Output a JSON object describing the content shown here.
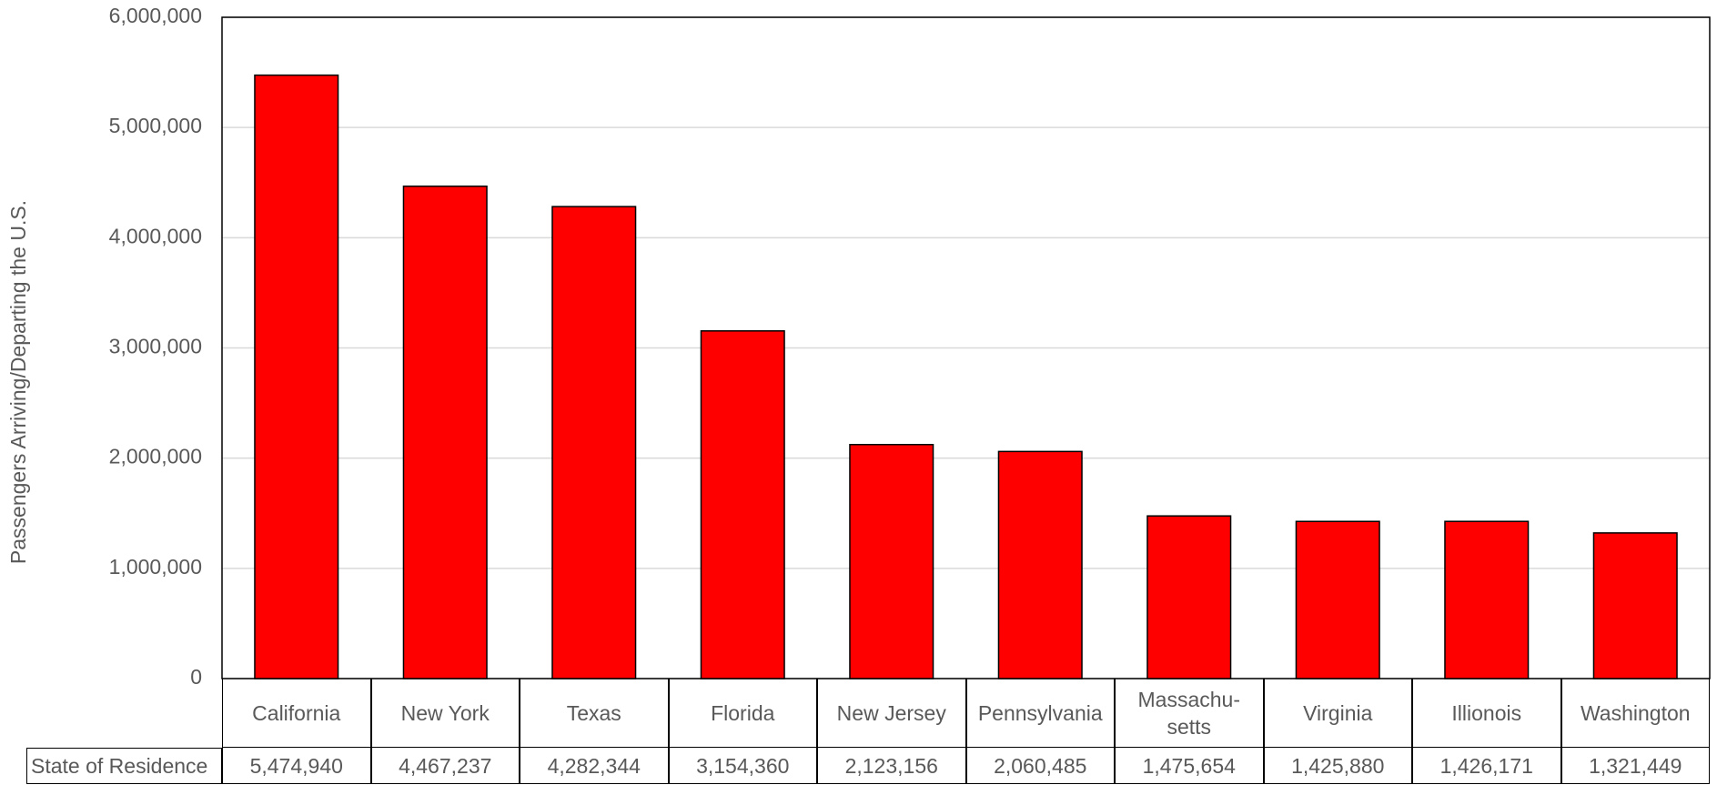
{
  "chart_data": {
    "type": "bar",
    "y_axis_label": "Passengers Arriving/Departing the U.S.",
    "categories": [
      "California",
      "New York",
      "Texas",
      "Florida",
      "New Jersey",
      "Pennsylvania",
      "Massachu-setts",
      "Virginia",
      "Illionois",
      "Washington"
    ],
    "values": [
      5474940,
      4467237,
      4282344,
      3154360,
      2123156,
      2060485,
      1475654,
      1425880,
      1426171,
      1321449
    ],
    "value_labels": [
      "5,474,940",
      "4,467,237",
      "4,282,344",
      "3,154,360",
      "2,123,156",
      "2,060,485",
      "1,475,654",
      "1,425,880",
      "1,426,171",
      "1,321,449"
    ],
    "table_row_label": "State of Residence",
    "color": "#ff0000",
    "ylim": [
      0,
      6000000
    ],
    "yticks": [
      0,
      {
        "value": 1000000,
        "label": "1,000,000"
      },
      {
        "value": 2000000,
        "label": "2,000,000"
      },
      {
        "value": 3000000,
        "label": "3,000,000"
      },
      {
        "value": 4000000,
        "label": "4,000,000"
      },
      {
        "value": 5000000,
        "label": "5,000,000"
      },
      {
        "value": 6000000,
        "label": "6,000,000"
      }
    ],
    "grid": true
  }
}
